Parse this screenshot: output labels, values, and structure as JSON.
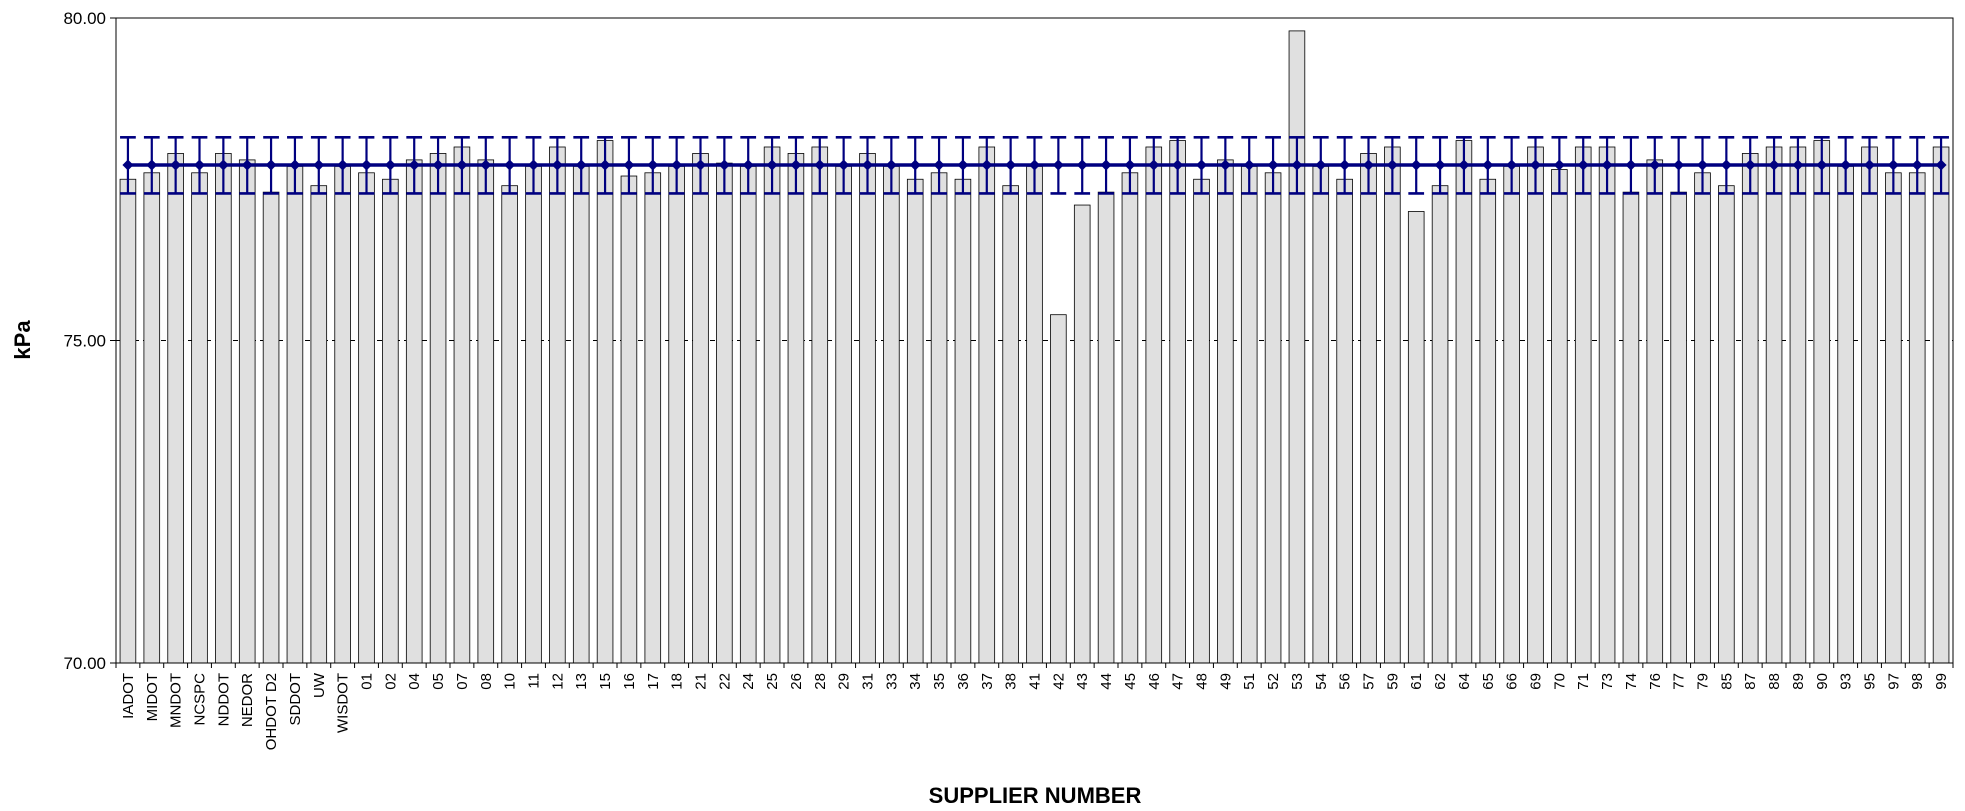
{
  "chart_data": {
    "type": "bar",
    "xlabel": "SUPPLIER NUMBER",
    "ylabel": "kPa",
    "ylim": [
      70,
      80
    ],
    "yticks": [
      "70.00",
      "75.00",
      "80.00"
    ],
    "grid": "horizontal dashed at 75.00",
    "categories": [
      "IADOT",
      "MIDOT",
      "MNDOT",
      "NCSPC",
      "NDDOT",
      "NEDOR",
      "OHDOT D2",
      "SDDOT",
      "UW",
      "WISDOT",
      "01",
      "02",
      "04",
      "05",
      "07",
      "08",
      "10",
      "11",
      "12",
      "13",
      "15",
      "16",
      "17",
      "18",
      "21",
      "22",
      "24",
      "25",
      "26",
      "28",
      "29",
      "31",
      "33",
      "34",
      "35",
      "36",
      "37",
      "38",
      "41",
      "42",
      "43",
      "44",
      "45",
      "46",
      "47",
      "48",
      "49",
      "51",
      "52",
      "53",
      "54",
      "56",
      "57",
      "59",
      "61",
      "62",
      "64",
      "65",
      "66",
      "69",
      "70",
      "71",
      "73",
      "74",
      "76",
      "77",
      "79",
      "85",
      "87",
      "88",
      "89",
      "90",
      "93",
      "95",
      "97",
      "98",
      "99"
    ],
    "values": [
      77.5,
      77.6,
      77.9,
      77.6,
      77.9,
      77.8,
      77.3,
      77.7,
      77.4,
      77.7,
      77.6,
      77.5,
      77.8,
      77.9,
      78.0,
      77.8,
      77.4,
      77.7,
      78.0,
      77.7,
      78.1,
      77.55,
      77.6,
      77.7,
      77.9,
      77.75,
      77.7,
      78.0,
      77.9,
      78.0,
      77.7,
      77.9,
      77.7,
      77.5,
      77.6,
      77.5,
      78.0,
      77.4,
      77.7,
      75.4,
      77.1,
      77.3,
      77.6,
      78.0,
      78.1,
      77.5,
      77.8,
      77.7,
      77.6,
      79.8,
      77.7,
      77.5,
      77.9,
      78.0,
      77.0,
      77.4,
      78.1,
      77.5,
      77.7,
      78.0,
      77.65,
      78.0,
      78.0,
      77.3,
      77.8,
      77.3,
      77.6,
      77.4,
      77.9,
      78.0,
      78.0,
      78.1,
      77.7,
      78.0,
      77.6,
      77.6,
      78.0
    ],
    "series": [
      {
        "values": [
          77.5,
          77.6,
          77.9,
          77.6,
          77.9,
          77.8,
          77.3,
          77.7,
          77.4,
          77.7,
          77.6,
          77.5,
          77.8,
          77.9,
          78.0,
          77.8,
          77.4,
          77.7,
          78.0,
          77.7,
          78.1,
          77.55,
          77.6,
          77.7,
          77.9,
          77.75,
          77.7,
          78.0,
          77.9,
          78.0,
          77.7,
          77.9,
          77.7,
          77.5,
          77.6,
          77.5,
          78.0,
          77.4,
          77.7,
          75.4,
          77.1,
          77.3,
          77.6,
          78.0,
          78.1,
          77.5,
          77.8,
          77.7,
          77.6,
          79.8,
          77.7,
          77.5,
          77.9,
          78.0,
          77.0,
          77.4,
          78.1,
          77.5,
          77.7,
          78.0,
          77.65,
          78.0,
          78.0,
          77.3,
          77.8,
          77.3,
          77.6,
          77.4,
          77.9,
          78.0,
          78.0,
          78.1,
          77.7,
          78.0,
          77.6,
          77.6,
          78.0
        ]
      },
      {
        "type": "line",
        "mean": 77.72,
        "error_low": 77.28,
        "error_high": 78.15
      }
    ],
    "colors": {
      "bar_fill": "#e0e0e0",
      "bar_stroke": "#000000",
      "mean_line": "#000080"
    }
  }
}
